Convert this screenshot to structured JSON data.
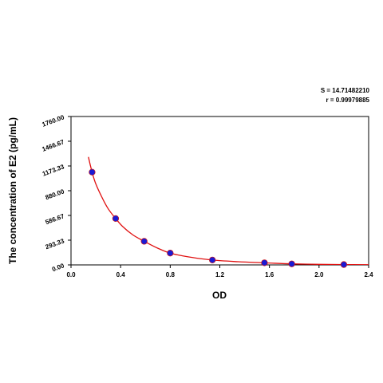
{
  "chart_data": {
    "type": "scatter",
    "title": "",
    "xlabel": "OD",
    "ylabel": "The concentration of E2 (pg/mL)",
    "xlim": [
      0.0,
      2.4
    ],
    "ylim": [
      0.0,
      1760.0
    ],
    "x_ticks": [
      0.0,
      0.4,
      0.8,
      1.2,
      1.6,
      2.0,
      2.4
    ],
    "x_tick_labels": [
      "0.0",
      "0.4",
      "0.8",
      "1.2",
      "1.6",
      "2.0",
      "2.4"
    ],
    "y_ticks": [
      0.0,
      293.33,
      586.67,
      880.0,
      1173.33,
      1466.67,
      1760.0
    ],
    "y_tick_labels": [
      "0.00",
      "293.33",
      "586.67",
      "880.00",
      "1173.33",
      "1466.67",
      "1760.00"
    ],
    "grid": false,
    "annotations": [
      "S = 14.71482210",
      "r = 0.99979885"
    ],
    "series": [
      {
        "kind": "points",
        "color": "#1a1ad4",
        "x": [
          0.17,
          0.36,
          0.59,
          0.8,
          1.14,
          1.56,
          1.78,
          2.2
        ],
        "y": [
          1100,
          550,
          280,
          140,
          58,
          25,
          12,
          4
        ]
      },
      {
        "kind": "fit-curve",
        "color": "#e01010",
        "x": [
          0.14,
          0.17,
          0.2,
          0.25,
          0.3,
          0.36,
          0.42,
          0.5,
          0.59,
          0.7,
          0.8,
          0.95,
          1.14,
          1.35,
          1.56,
          1.78,
          2.0,
          2.2,
          2.4
        ],
        "y": [
          1280,
          1100,
          960,
          800,
          665,
          550,
          450,
          355,
          280,
          198,
          140,
          95,
          58,
          38,
          25,
          12,
          7,
          4,
          2
        ]
      }
    ]
  }
}
